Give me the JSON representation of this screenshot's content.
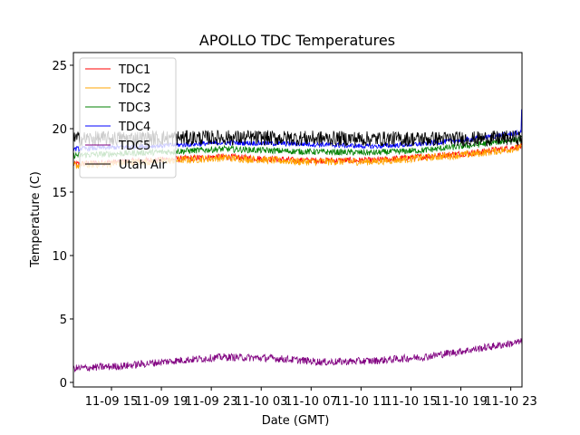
{
  "chart_data": {
    "type": "line",
    "title": "APOLLO TDC Temperatures",
    "xlabel": "Date (GMT)",
    "ylabel": "Temperature (C)",
    "x_unit": "hours since 11-09 00:00 GMT",
    "xlim": [
      11.95,
      47.9
    ],
    "ylim": [
      -0.36,
      26
    ],
    "yticks": [
      0,
      5,
      10,
      15,
      20,
      25
    ],
    "xticks": [
      {
        "value": 15,
        "label": "11-09 15"
      },
      {
        "value": 19,
        "label": "11-09 19"
      },
      {
        "value": 23,
        "label": "11-09 23"
      },
      {
        "value": 27,
        "label": "11-10 03"
      },
      {
        "value": 31,
        "label": "11-10 07"
      },
      {
        "value": 35,
        "label": "11-10 11"
      },
      {
        "value": 39,
        "label": "11-10 15"
      },
      {
        "value": 43,
        "label": "11-10 19"
      },
      {
        "value": 47,
        "label": "11-10 23"
      }
    ],
    "grid": false,
    "legend_position": "top-left",
    "series": [
      {
        "name": "TDC1",
        "color": "#ff0000",
        "noise": 0.25,
        "trend": [
          [
            12,
            17.2
          ],
          [
            20,
            17.6
          ],
          [
            24,
            17.8
          ],
          [
            30,
            17.5
          ],
          [
            36,
            17.5
          ],
          [
            40,
            17.8
          ],
          [
            44,
            18.1
          ],
          [
            47.9,
            18.6
          ]
        ]
      },
      {
        "name": "TDC2",
        "color": "#ffa500",
        "noise": 0.3,
        "trend": [
          [
            12,
            17.1
          ],
          [
            20,
            17.5
          ],
          [
            24,
            17.7
          ],
          [
            30,
            17.4
          ],
          [
            36,
            17.4
          ],
          [
            40,
            17.7
          ],
          [
            44,
            18.0
          ],
          [
            47.9,
            18.5
          ]
        ]
      },
      {
        "name": "TDC3",
        "color": "#008000",
        "noise": 0.25,
        "trend": [
          [
            12,
            17.9
          ],
          [
            20,
            18.2
          ],
          [
            24,
            18.4
          ],
          [
            30,
            18.2
          ],
          [
            36,
            18.1
          ],
          [
            40,
            18.3
          ],
          [
            44,
            18.7
          ],
          [
            47.9,
            19.2
          ]
        ]
      },
      {
        "name": "TDC4",
        "color": "#0000ff",
        "noise": 0.2,
        "trend": [
          [
            12,
            18.4
          ],
          [
            20,
            18.7
          ],
          [
            24,
            18.9
          ],
          [
            30,
            18.8
          ],
          [
            36,
            18.6
          ],
          [
            40,
            18.8
          ],
          [
            44,
            19.2
          ],
          [
            47.9,
            19.7
          ]
        ],
        "spike": {
          "x": 47.85,
          "value": 21.5
        }
      },
      {
        "name": "TDC5",
        "color": "#800080",
        "noise": 0.3,
        "trend": [
          [
            12,
            1.1
          ],
          [
            16,
            1.3
          ],
          [
            20,
            1.7
          ],
          [
            24,
            2.0
          ],
          [
            28,
            1.9
          ],
          [
            32,
            1.6
          ],
          [
            36,
            1.7
          ],
          [
            40,
            2.0
          ],
          [
            44,
            2.6
          ],
          [
            47.9,
            3.2
          ]
        ]
      },
      {
        "name": "Utah Air",
        "color": "#000000",
        "noise": 0.6,
        "trend": [
          [
            12,
            19.2
          ],
          [
            24,
            19.3
          ],
          [
            36,
            19.2
          ],
          [
            44,
            19.2
          ],
          [
            47.9,
            19.3
          ]
        ]
      }
    ]
  }
}
